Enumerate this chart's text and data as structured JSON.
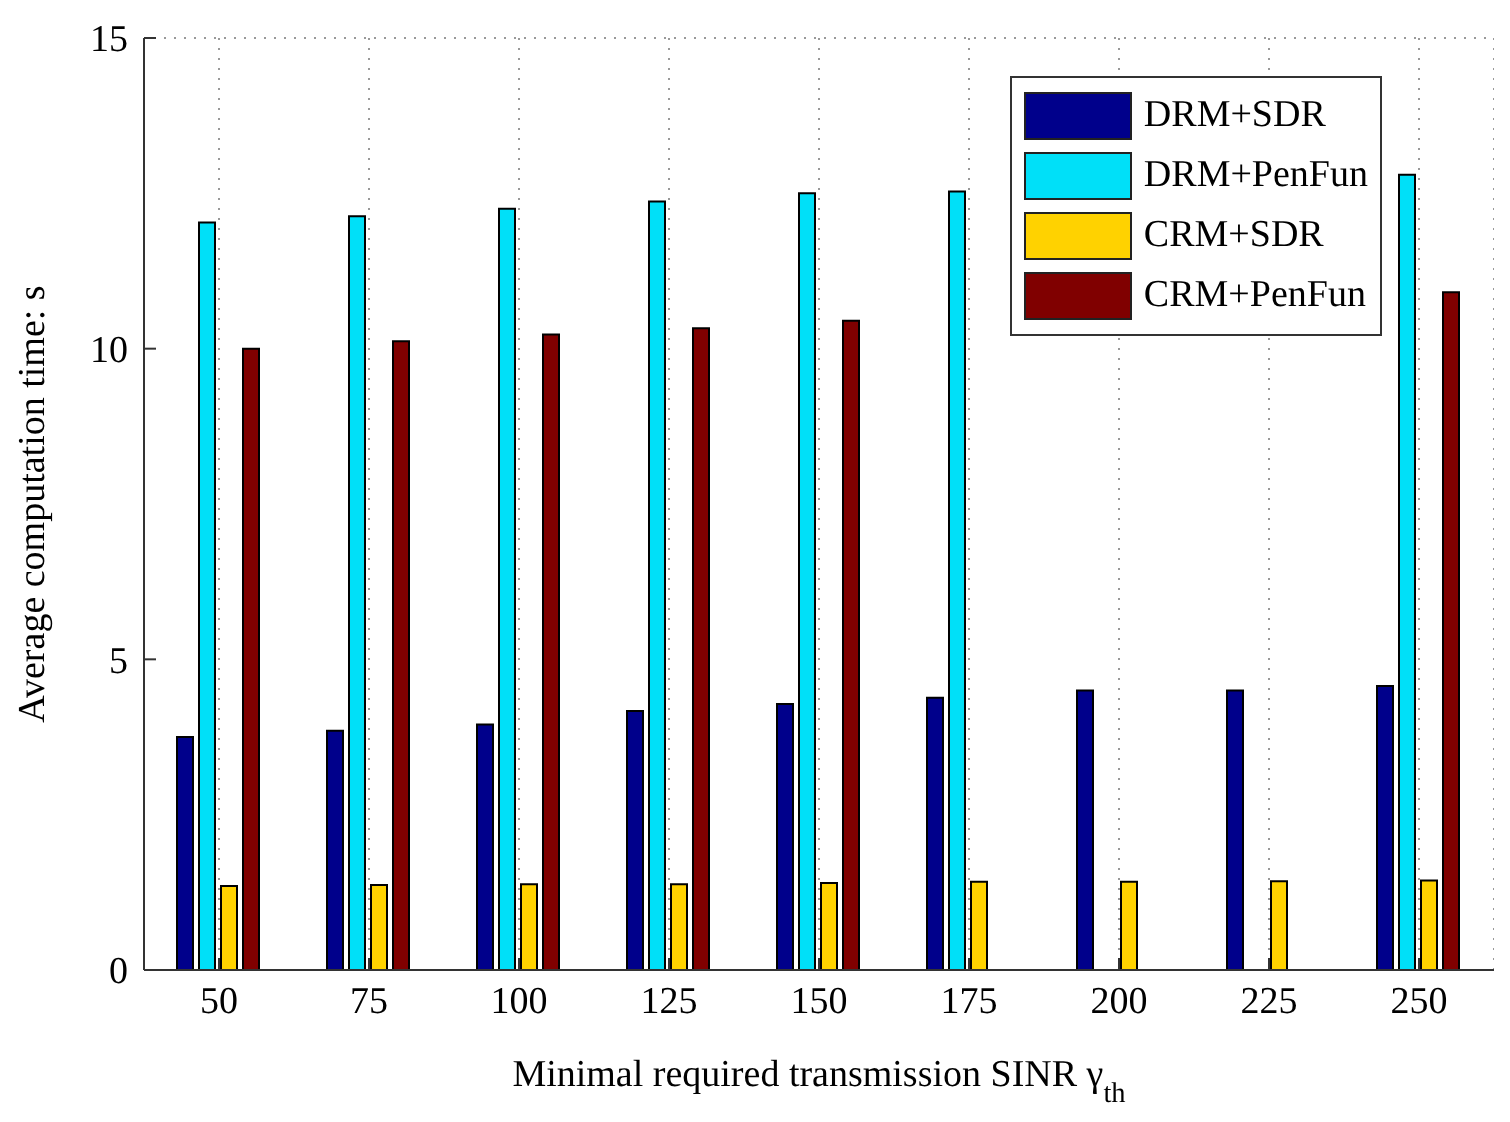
{
  "chart_data": {
    "type": "bar",
    "xlabel": "Minimal required transmission SINR γ$_{th}$",
    "ylabel": "Average computation time: s",
    "categories": [
      "50",
      "75",
      "100",
      "125",
      "150",
      "175",
      "200",
      "225",
      "250"
    ],
    "series": [
      {
        "name": "DRM+SDR",
        "color": "#00008b",
        "values": [
          3.75,
          3.85,
          3.95,
          4.17,
          4.28,
          4.38,
          4.5,
          4.5,
          4.57
        ]
      },
      {
        "name": "DRM+PenFun",
        "color": "#00e0f8",
        "values": [
          12.03,
          12.13,
          12.25,
          12.37,
          12.5,
          12.53,
          null,
          null,
          12.8
        ]
      },
      {
        "name": "CRM+SDR",
        "color": "#ffd200",
        "values": [
          1.35,
          1.37,
          1.38,
          1.38,
          1.4,
          1.42,
          1.42,
          1.43,
          1.44
        ]
      },
      {
        "name": "CRM+PenFun",
        "color": "#800000",
        "values": [
          10.0,
          10.12,
          10.23,
          10.33,
          10.45,
          null,
          null,
          null,
          10.91
        ]
      }
    ],
    "ylim": [
      0,
      15
    ],
    "yticks": [
      0,
      5,
      10,
      15
    ],
    "grid": true,
    "legend": "top right"
  }
}
